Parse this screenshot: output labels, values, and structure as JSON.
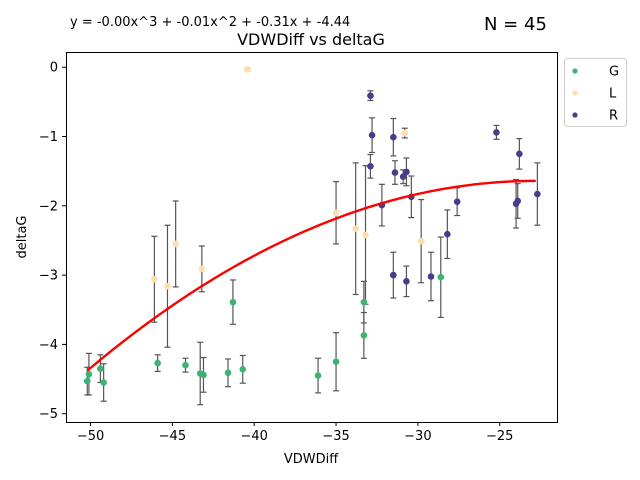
{
  "chart_data": {
    "type": "scatter",
    "title": "VDWDiff vs deltaG",
    "equation": "y = -0.00x^3 + -0.01x^2 + -0.31x + -4.44",
    "n_label": "N = 45",
    "xlabel": "VDWDiff",
    "ylabel": "deltaG",
    "xlim": [
      -51.5,
      -21.5
    ],
    "ylim": [
      -5.12,
      0.22
    ],
    "xticks": [
      -50,
      -45,
      -40,
      -35,
      -30,
      -25
    ],
    "yticks": [
      -5,
      -4,
      -3,
      -2,
      -1,
      0
    ],
    "grid": false,
    "legend_placement": "outside-top-right",
    "error_bar_color": "#555555",
    "fit": {
      "color": "#ff0000",
      "coefficients": [
        -0.0,
        -0.01,
        -0.31,
        -4.44
      ],
      "x_from": -50.2,
      "x_to": -22.8,
      "y_from": -4.38,
      "y_to": -1.64
    },
    "series": [
      {
        "name": "G",
        "color": "#3cb371",
        "points": [
          [
            -50.2,
            -4.53,
            0.2
          ],
          [
            -50.1,
            -4.43,
            0.3
          ],
          [
            -49.4,
            -4.35,
            0.2
          ],
          [
            -49.2,
            -4.55,
            0.27
          ],
          [
            -45.9,
            -4.27,
            0.12
          ],
          [
            -44.2,
            -4.3,
            0.1
          ],
          [
            -43.3,
            -4.42,
            0.45
          ],
          [
            -43.1,
            -4.44,
            0.25
          ],
          [
            -41.6,
            -4.41,
            0.2
          ],
          [
            -41.3,
            -3.39,
            0.32
          ],
          [
            -40.7,
            -4.36,
            0.2
          ],
          [
            -36.1,
            -4.45,
            0.25
          ],
          [
            -35.0,
            -4.25,
            0.42
          ],
          [
            -33.3,
            -3.39,
            0.3
          ],
          [
            -33.3,
            -3.87,
            0.33
          ],
          [
            -28.6,
            -3.03,
            0.58
          ]
        ]
      },
      {
        "name": "L",
        "color": "#ffdead",
        "points": [
          [
            -46.1,
            -3.06,
            0.62
          ],
          [
            -45.3,
            -3.16,
            0.88
          ],
          [
            -44.8,
            -2.55,
            0.62
          ],
          [
            -43.2,
            -2.91,
            0.33
          ],
          [
            -40.4,
            -0.03,
            0.02
          ],
          [
            -35.0,
            -2.1,
            0.45
          ],
          [
            -33.8,
            -2.33,
            0.95
          ],
          [
            -33.2,
            -2.42,
            1.0
          ],
          [
            -30.8,
            -0.95,
            0.07
          ],
          [
            -29.8,
            -2.51,
            0.6
          ]
        ]
      },
      {
        "name": "R",
        "color": "#483d8b",
        "points": [
          [
            -32.9,
            -0.41,
            0.07
          ],
          [
            -32.8,
            -0.98,
            0.25
          ],
          [
            -32.9,
            -1.43,
            0.17
          ],
          [
            -32.2,
            -1.99,
            0.3
          ],
          [
            -31.5,
            -1.01,
            0.27
          ],
          [
            -31.4,
            -1.52,
            0.17
          ],
          [
            -30.9,
            -1.58,
            0.1
          ],
          [
            -30.7,
            -1.51,
            0.2
          ],
          [
            -30.4,
            -1.87,
            0.3
          ],
          [
            -31.5,
            -3.0,
            0.33
          ],
          [
            -30.7,
            -3.09,
            0.22
          ],
          [
            -29.2,
            -3.02,
            0.35
          ],
          [
            -28.2,
            -2.41,
            0.35
          ],
          [
            -27.6,
            -1.94,
            0.2
          ],
          [
            -25.2,
            -0.94,
            0.1
          ],
          [
            -24.0,
            -1.97,
            0.35
          ],
          [
            -23.9,
            -1.93,
            0.25
          ],
          [
            -23.8,
            -1.25,
            0.22
          ],
          [
            -22.7,
            -1.83,
            0.45
          ]
        ]
      }
    ]
  }
}
